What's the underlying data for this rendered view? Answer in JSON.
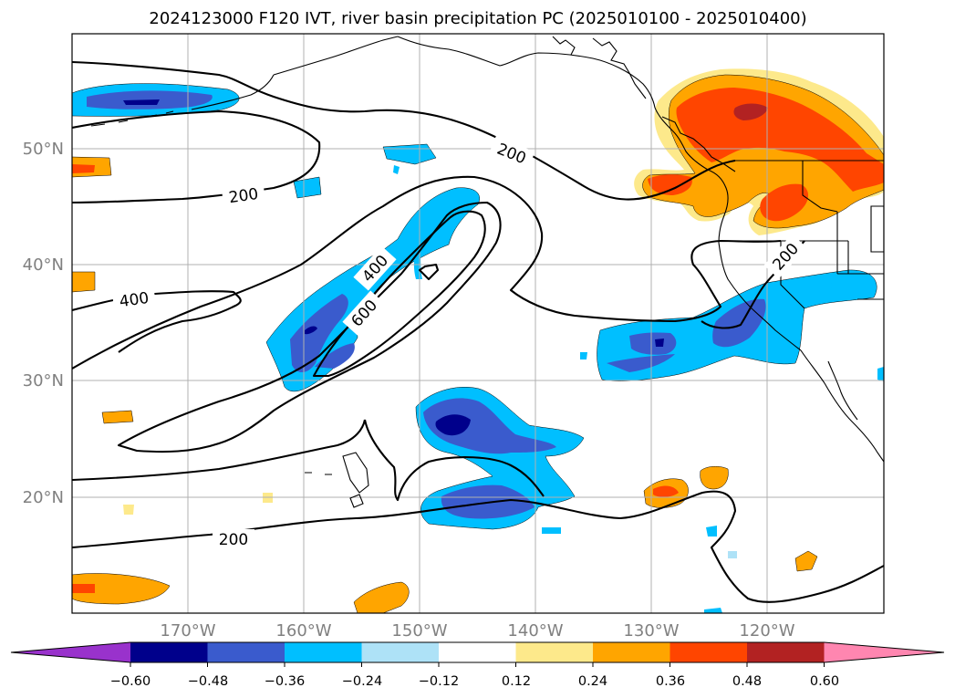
{
  "title": "2024123000 F120 IVT, river basin precipitation PC (2025010100 - 2025010400)",
  "lon_labels": [
    "170°W",
    "160°W",
    "150°W",
    "140°W",
    "130°W",
    "120°W"
  ],
  "lat_labels": [
    "50°N",
    "40°N",
    "30°N",
    "20°N"
  ],
  "ivt_contour_labels": [
    "200",
    "200",
    "200",
    "200",
    "400",
    "400",
    "600"
  ],
  "colorbar": {
    "tick_labels": [
      "−0.60",
      "−0.48",
      "−0.36",
      "−0.24",
      "−0.12",
      "0.12",
      "0.24",
      "0.36",
      "0.48",
      "0.60"
    ],
    "colors": [
      "#9932cc",
      "#00008b",
      "#3a5bcd",
      "#00bfff",
      "#aee2f7",
      "#ffffff",
      "#fde98b",
      "#ffa500",
      "#ff4500",
      "#b22222",
      "#ff86b0"
    ],
    "extend": "both"
  },
  "map_extent": {
    "lon": [
      -180,
      -110
    ],
    "lat": [
      10,
      60
    ]
  },
  "gridlines": true
}
